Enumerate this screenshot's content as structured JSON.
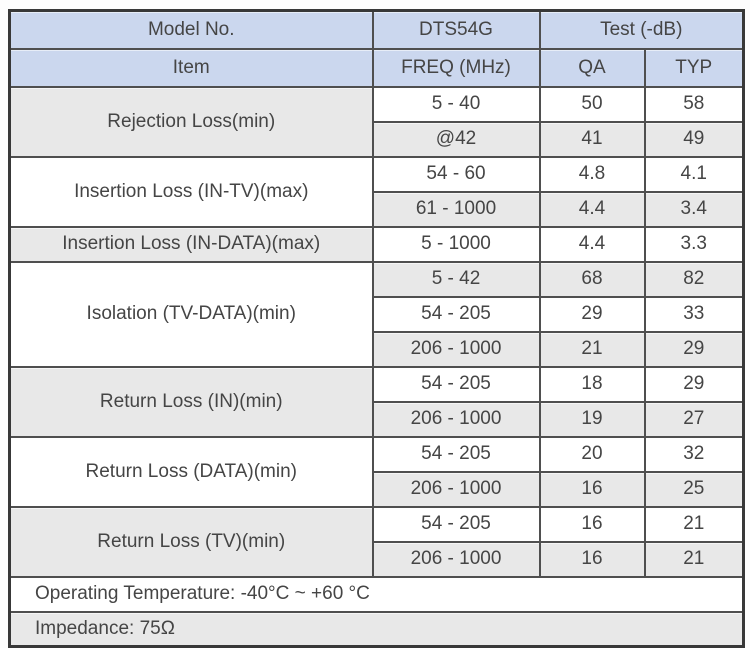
{
  "title": "DTS54G specification table",
  "header": {
    "model_label": "Model No.",
    "model_value": "DTS54G",
    "test_label": "Test (-dB)",
    "item_label": "Item",
    "freq_label": "FREQ (MHz)",
    "qa_label": "QA",
    "typ_label": "TYP"
  },
  "groups": [
    {
      "item": "Rejection Loss(min)",
      "shade": "gray",
      "rows": [
        {
          "freq": "5 - 40",
          "qa": "50",
          "typ": "58",
          "shade": "white"
        },
        {
          "freq": "@42",
          "qa": "41",
          "typ": "49",
          "shade": "gray"
        }
      ]
    },
    {
      "item": "Insertion Loss (IN-TV)(max)",
      "shade": "white",
      "rows": [
        {
          "freq": "54 - 60",
          "qa": "4.8",
          "typ": "4.1",
          "shade": "white"
        },
        {
          "freq": "61 - 1000",
          "qa": "4.4",
          "typ": "3.4",
          "shade": "gray"
        }
      ]
    },
    {
      "item": "Insertion Loss (IN-DATA)(max)",
      "shade": "gray",
      "rows": [
        {
          "freq": "5 - 1000",
          "qa": "4.4",
          "typ": "3.3",
          "shade": "white"
        }
      ]
    },
    {
      "item": "Isolation (TV-DATA)(min)",
      "shade": "white",
      "rows": [
        {
          "freq": "5 - 42",
          "qa": "68",
          "typ": "82",
          "shade": "gray"
        },
        {
          "freq": "54 - 205",
          "qa": "29",
          "typ": "33",
          "shade": "white"
        },
        {
          "freq": "206 - 1000",
          "qa": "21",
          "typ": "29",
          "shade": "gray"
        }
      ]
    },
    {
      "item": "Return Loss (IN)(min)",
      "shade": "gray",
      "rows": [
        {
          "freq": "54 - 205",
          "qa": "18",
          "typ": "29",
          "shade": "white"
        },
        {
          "freq": "206 - 1000",
          "qa": "19",
          "typ": "27",
          "shade": "gray"
        }
      ]
    },
    {
      "item": "Return Loss (DATA)(min)",
      "shade": "white",
      "rows": [
        {
          "freq": "54 - 205",
          "qa": "20",
          "typ": "32",
          "shade": "white"
        },
        {
          "freq": "206 - 1000",
          "qa": "16",
          "typ": "25",
          "shade": "gray"
        }
      ]
    },
    {
      "item": "Return Loss (TV)(min)",
      "shade": "gray",
      "rows": [
        {
          "freq": "54 - 205",
          "qa": "16",
          "typ": "21",
          "shade": "white"
        },
        {
          "freq": "206 - 1000",
          "qa": "16",
          "typ": "21",
          "shade": "gray"
        }
      ]
    }
  ],
  "footer_rows": [
    {
      "text": "Operating Temperature: -40°C ~ +60 °C",
      "shade": "white"
    },
    {
      "text": "Impedance: 75Ω",
      "shade": "gray"
    }
  ],
  "colors": {
    "header_bg": "#cbd7ee",
    "gray_bg": "#e8e8e8",
    "white_bg": "#ffffff",
    "border": "#4f4f4f",
    "text": "#454545"
  }
}
